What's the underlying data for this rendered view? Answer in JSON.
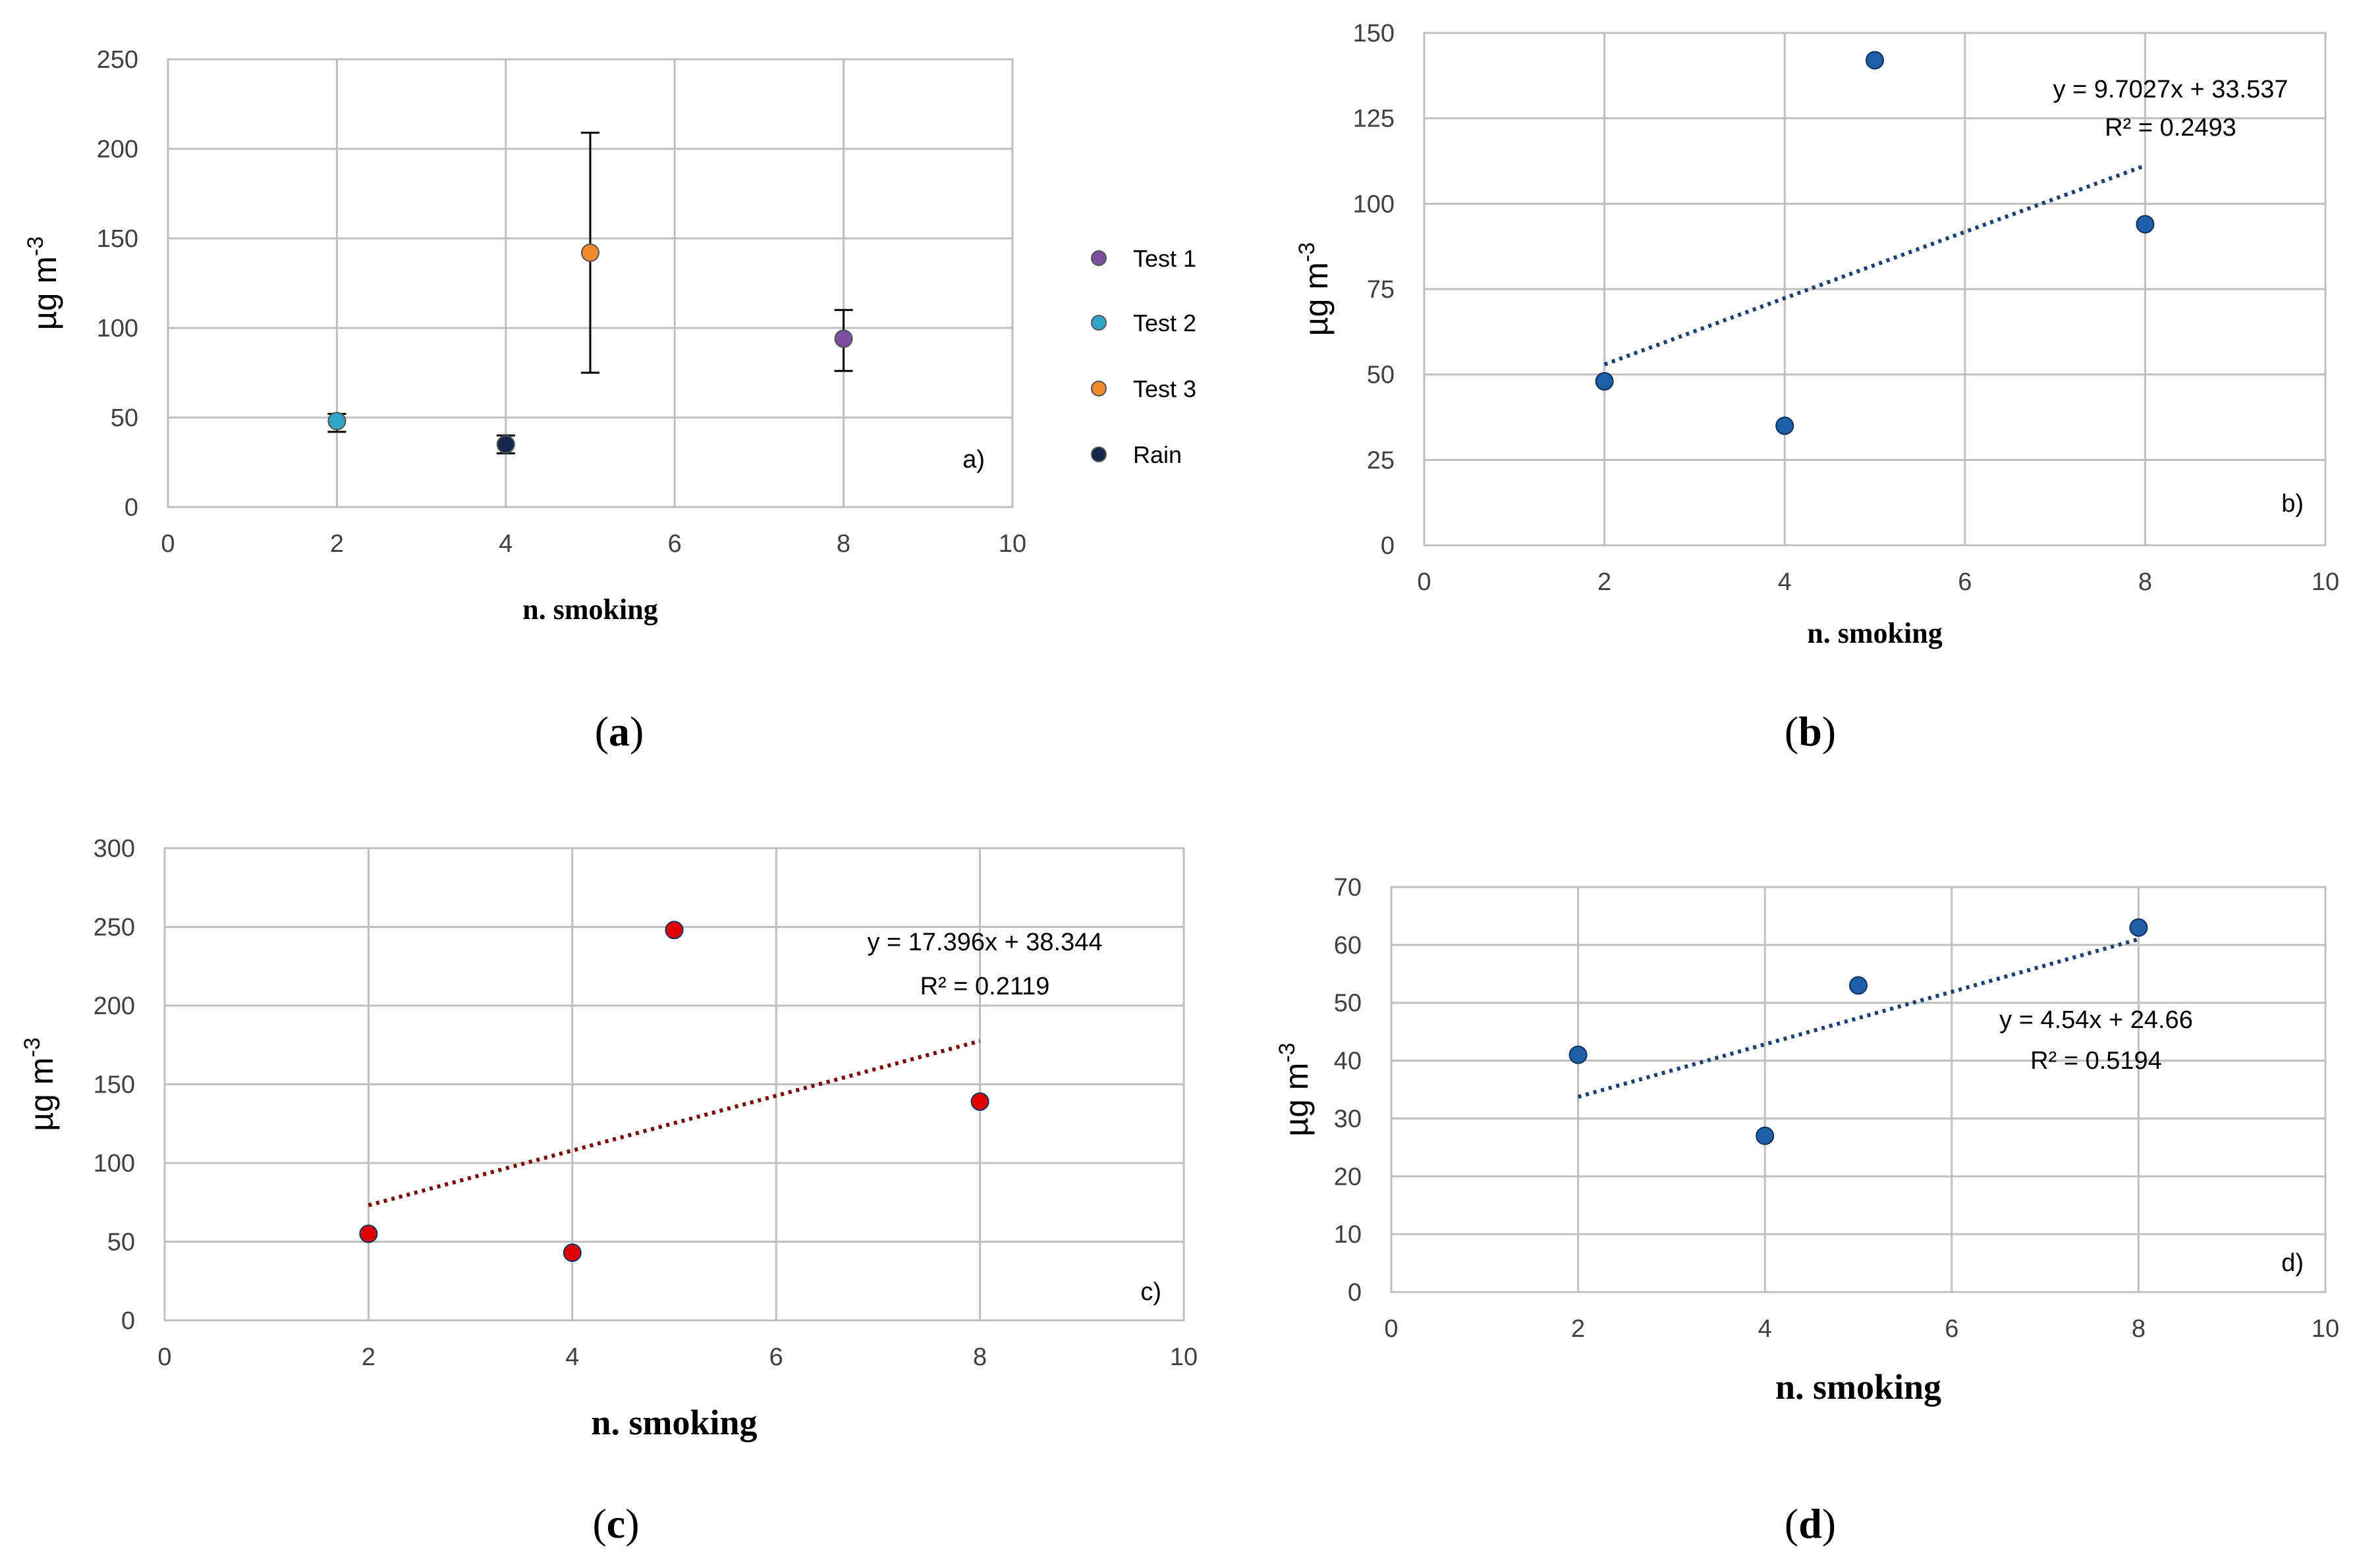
{
  "chart_data": [
    {
      "panel": "a",
      "type": "scatter",
      "caption": "a",
      "plot_label": "a)",
      "xlabel": "n. smoking",
      "ylabel": "µg m",
      "ylabel_sup": "-3",
      "xlim": [
        0,
        10
      ],
      "ylim": [
        0,
        250
      ],
      "xticks": [
        0,
        2,
        4,
        6,
        8,
        10
      ],
      "yticks": [
        0,
        50,
        100,
        150,
        200,
        250
      ],
      "series": [
        {
          "name": "Test 1",
          "color": "#7B4F9D",
          "points": [
            {
              "x": 8,
              "y": 94,
              "err_low": 76,
              "err_high": 110
            }
          ]
        },
        {
          "name": "Test 2",
          "color": "#2FA6C6",
          "points": [
            {
              "x": 2,
              "y": 48,
              "err_low": 42,
              "err_high": 52
            }
          ]
        },
        {
          "name": "Test 3",
          "color": "#F08A2C",
          "points": [
            {
              "x": 5,
              "y": 142,
              "err_low": 75,
              "err_high": 209
            }
          ]
        },
        {
          "name": "Rain",
          "color": "#15284B",
          "points": [
            {
              "x": 4,
              "y": 35,
              "err_low": 30,
              "err_high": 40
            }
          ]
        }
      ]
    },
    {
      "panel": "b",
      "type": "scatter",
      "caption": "b",
      "plot_label": "b)",
      "xlabel": "n. smoking",
      "ylabel": "µg m",
      "ylabel_sup": "-3",
      "xlim": [
        0,
        10
      ],
      "ylim": [
        0,
        150
      ],
      "xticks": [
        0,
        2,
        4,
        6,
        8,
        10
      ],
      "yticks": [
        0,
        25,
        50,
        75,
        100,
        125,
        150
      ],
      "point_color": "#1F5FA8",
      "points": [
        {
          "x": 2,
          "y": 48
        },
        {
          "x": 4,
          "y": 35
        },
        {
          "x": 5,
          "y": 142
        },
        {
          "x": 8,
          "y": 94
        }
      ],
      "trend": {
        "slope": 9.7027,
        "intercept": 33.537,
        "x_from": 2,
        "x_to": 8,
        "color": "#1F3F73"
      },
      "equation": "y = 9.7027x + 33.537",
      "r2_label": "R² = 0.2493"
    },
    {
      "panel": "c",
      "type": "scatter",
      "caption": "c",
      "plot_label": "c)",
      "xlabel": "n. smoking",
      "ylabel": "µg m",
      "ylabel_sup": "-3",
      "xlim": [
        0,
        10
      ],
      "ylim": [
        0,
        300
      ],
      "xticks": [
        0,
        2,
        4,
        6,
        8,
        10
      ],
      "yticks": [
        0,
        50,
        100,
        150,
        200,
        250,
        300
      ],
      "point_color": "#E00000",
      "points": [
        {
          "x": 2,
          "y": 55
        },
        {
          "x": 4,
          "y": 43
        },
        {
          "x": 5,
          "y": 248
        },
        {
          "x": 8,
          "y": 139
        }
      ],
      "trend": {
        "slope": 17.396,
        "intercept": 38.344,
        "x_from": 2,
        "x_to": 8,
        "color": "#7A0A0A"
      },
      "equation": "y = 17.396x + 38.344",
      "r2_label": "R² = 0.2119"
    },
    {
      "panel": "d",
      "type": "scatter",
      "caption": "d",
      "plot_label": "d)",
      "xlabel": "n. smoking",
      "ylabel": "µg m",
      "ylabel_sup": "-3",
      "xlim": [
        0,
        10
      ],
      "ylim": [
        0,
        70
      ],
      "xticks": [
        0,
        2,
        4,
        6,
        8,
        10
      ],
      "yticks": [
        0,
        10,
        20,
        30,
        40,
        50,
        60,
        70
      ],
      "point_color": "#1F5FA8",
      "points": [
        {
          "x": 2,
          "y": 41
        },
        {
          "x": 4,
          "y": 27
        },
        {
          "x": 5,
          "y": 53
        },
        {
          "x": 8,
          "y": 63
        }
      ],
      "trend": {
        "slope": 4.54,
        "intercept": 24.66,
        "x_from": 2,
        "x_to": 8,
        "color": "#1F3F73"
      },
      "equation": "y = 4.54x + 24.66",
      "r2_label": "R² = 0.5194"
    }
  ]
}
